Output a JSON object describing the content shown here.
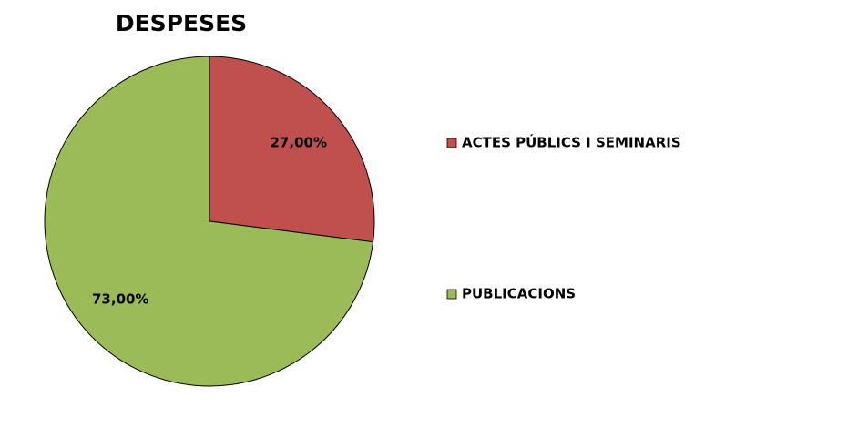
{
  "chart_data": {
    "type": "pie",
    "title": "DESPESES",
    "categories": [
      "ACTES PÚBLICS I SEMINARIS",
      "PUBLICACIONS"
    ],
    "values": [
      27,
      73
    ],
    "value_labels": [
      "27,00%",
      "73,00%"
    ],
    "colors": [
      "#c0504d",
      "#9bbb59"
    ],
    "legend": "right"
  }
}
